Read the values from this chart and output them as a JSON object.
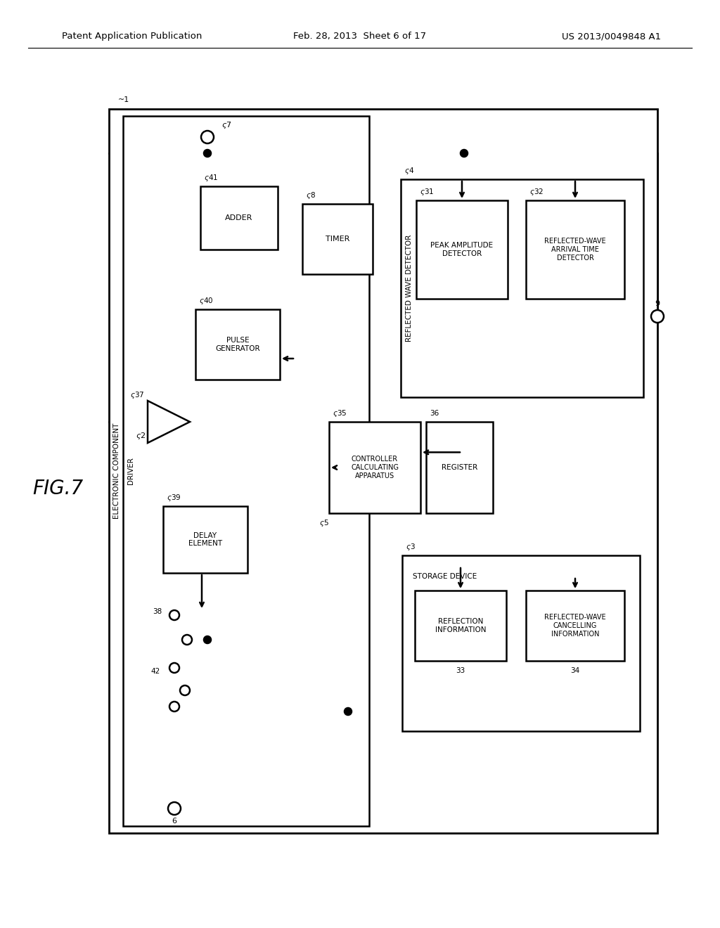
{
  "bg": "#ffffff",
  "hdr_left": "Patent Application Publication",
  "hdr_mid": "Feb. 28, 2013  Sheet 6 of 17",
  "hdr_right": "US 2013/0049848 A1",
  "fig_label": "FIG.7",
  "lw": 1.6
}
